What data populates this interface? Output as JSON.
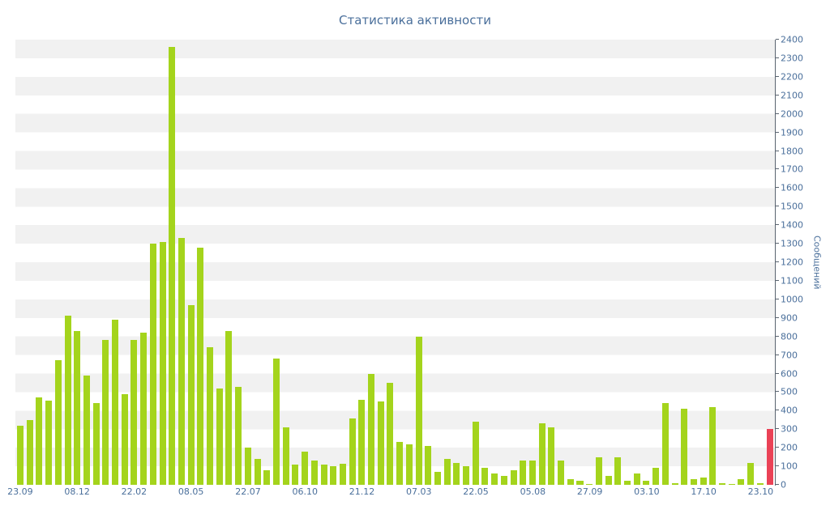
{
  "chart_data": {
    "type": "bar",
    "title": "Статистика активности",
    "ylabel": "Сообщений",
    "xlabel": "",
    "ylim": [
      0,
      2400
    ],
    "ytick_step": 100,
    "yticks": [
      0,
      100,
      200,
      300,
      400,
      500,
      600,
      700,
      800,
      900,
      1000,
      1100,
      1200,
      1300,
      1400,
      1500,
      1600,
      1700,
      1800,
      1900,
      2000,
      2100,
      2200,
      2300,
      2400
    ],
    "x_labels": [
      "23.09",
      "08.12",
      "22.02",
      "08.05",
      "22.07",
      "06.10",
      "21.12",
      "07.03",
      "22.05",
      "05.08",
      "27.09",
      "03.10",
      "17.10",
      "23.10"
    ],
    "x_label_indices": [
      0,
      6,
      12,
      18,
      24,
      30,
      36,
      42,
      48,
      54,
      60,
      66,
      72,
      78
    ],
    "values": [
      320,
      350,
      470,
      455,
      670,
      910,
      830,
      590,
      440,
      780,
      890,
      490,
      780,
      820,
      1300,
      1310,
      2360,
      1330,
      970,
      1280,
      740,
      520,
      830,
      530,
      200,
      140,
      80,
      680,
      310,
      110,
      180,
      130,
      110,
      100,
      115,
      360,
      460,
      600,
      450,
      550,
      230,
      220,
      800,
      210,
      70,
      140,
      120,
      100,
      340,
      90,
      60,
      50,
      80,
      130,
      130,
      330,
      310,
      130,
      30,
      20,
      5,
      150,
      50,
      150,
      20,
      60,
      20,
      90,
      440,
      10,
      410,
      30,
      40,
      420,
      10,
      5,
      30,
      120,
      10,
      300
    ],
    "bar_color": "#a4d41c",
    "last_bar_color": "#ea4256",
    "title_color": "#4a6f9b",
    "axis_text_color": "#4a6f9b",
    "axis_line_color": "#5a6470",
    "stripe_color": "#f1f1f1",
    "grid": "horizontal-stripes",
    "legend": "none",
    "y_axis_side": "right"
  }
}
